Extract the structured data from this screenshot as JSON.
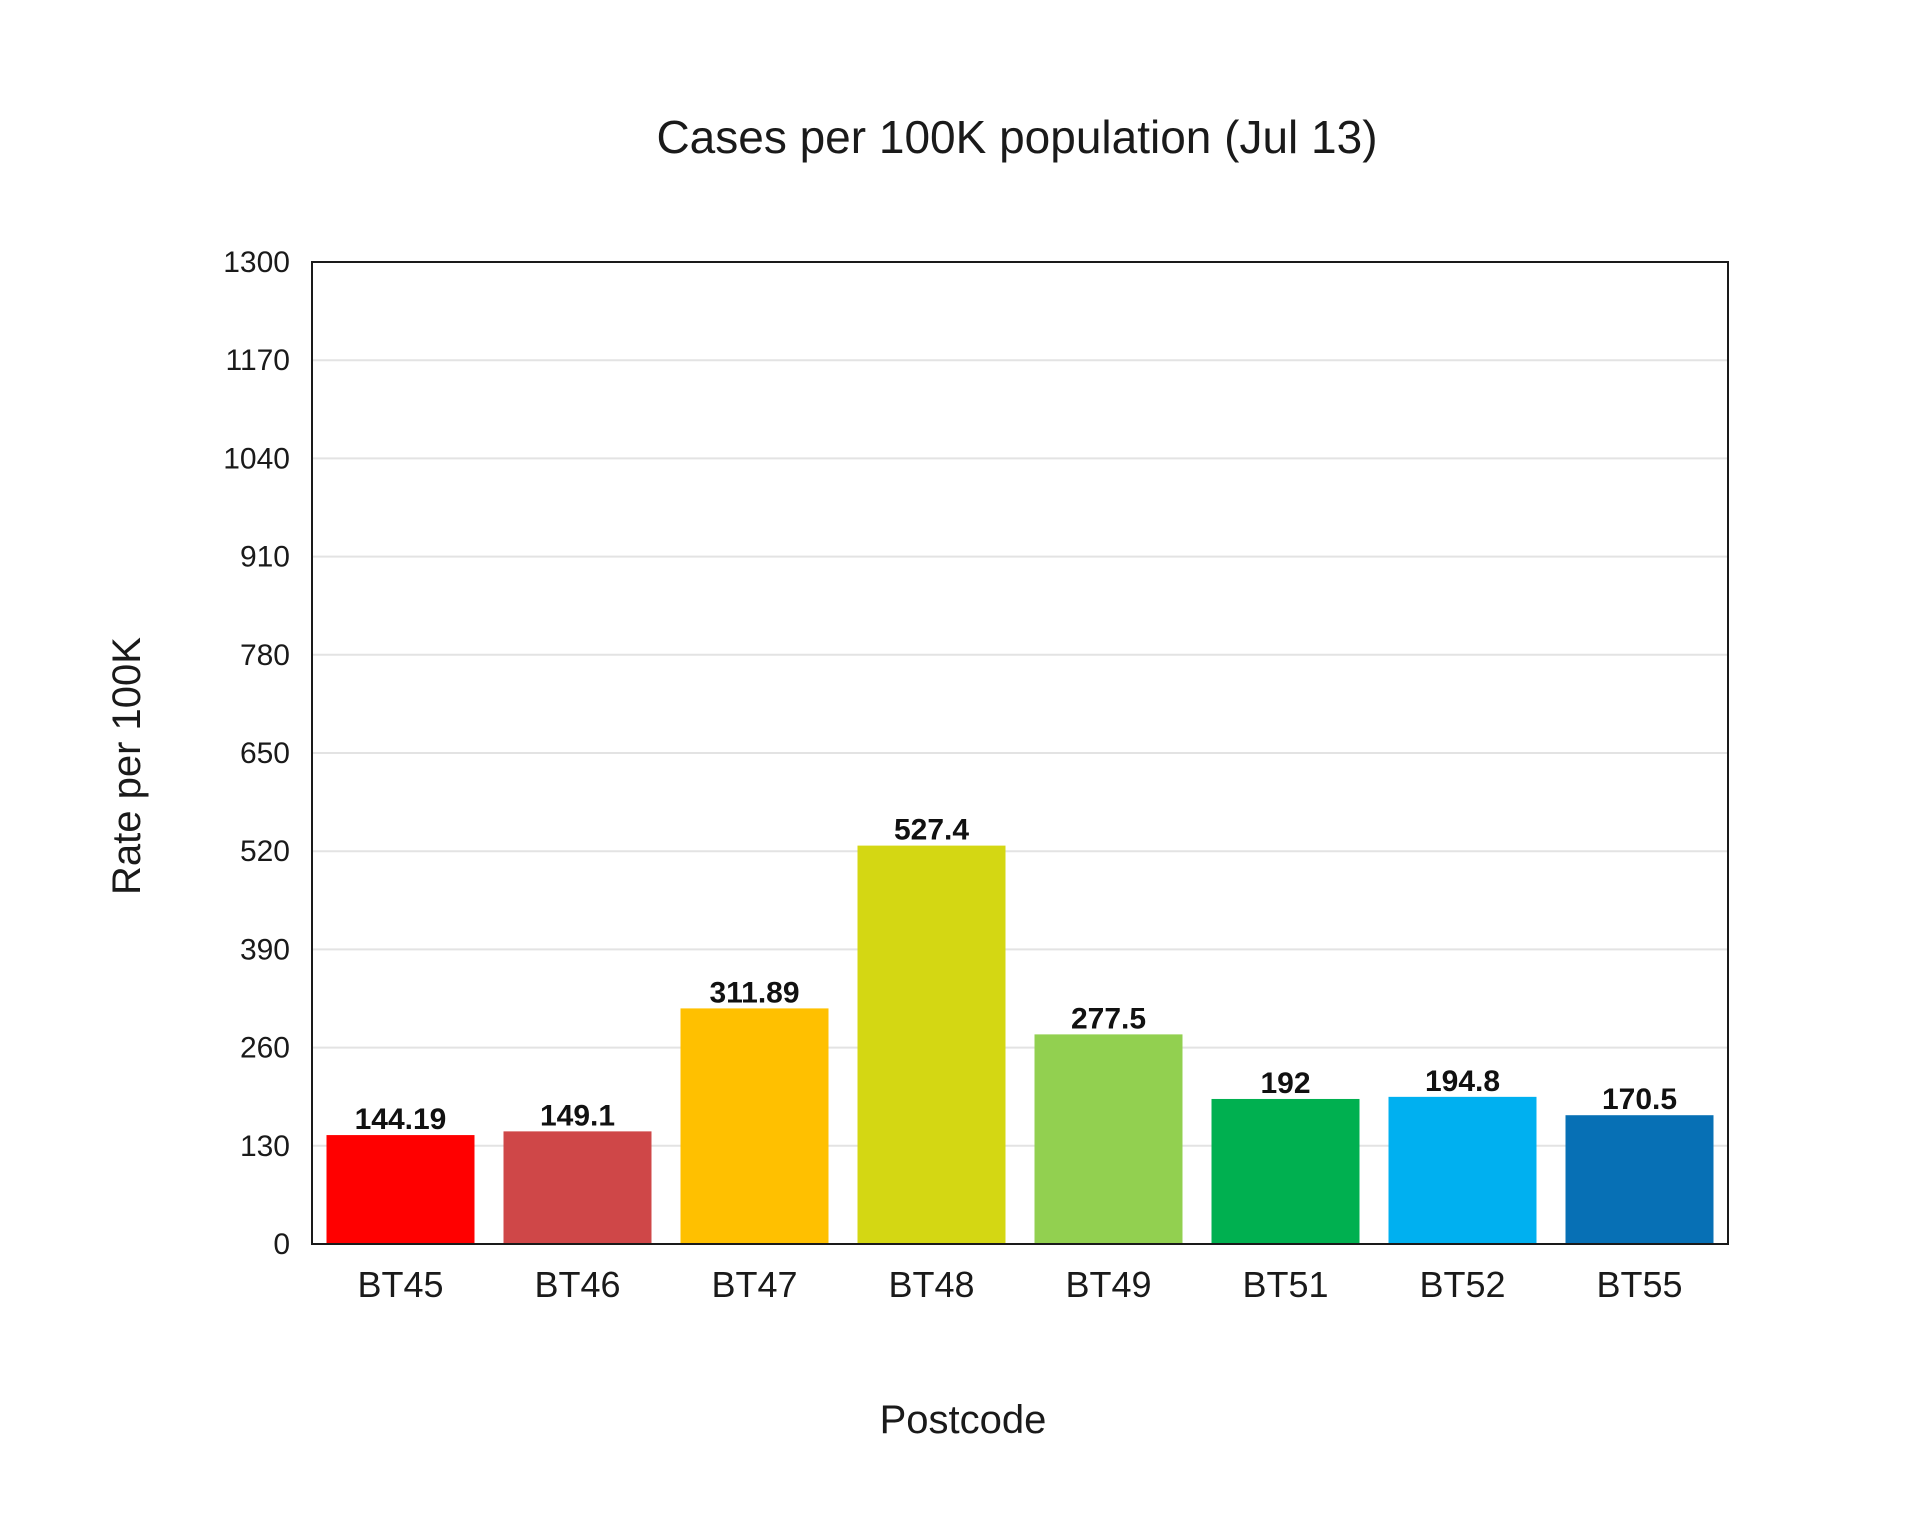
{
  "chart_data": {
    "type": "bar",
    "title": "Cases per 100K population (Jul 13)",
    "xlabel": "Postcode",
    "ylabel": "Rate per 100K",
    "categories": [
      "BT45",
      "BT46",
      "BT47",
      "BT48",
      "BT49",
      "BT51",
      "BT52",
      "BT55"
    ],
    "values": [
      144.19,
      149.1,
      311.89,
      527.4,
      277.5,
      192,
      194.8,
      170.5
    ],
    "value_labels": [
      "144.19",
      "149.1",
      "311.89",
      "527.4",
      "277.5",
      "192",
      "194.8",
      "170.5"
    ],
    "colors": [
      "#ff0000",
      "#cf4748",
      "#ffc000",
      "#d4d713",
      "#92d050",
      "#00b050",
      "#00b0f0",
      "#0770b5"
    ],
    "ylim": [
      0,
      1300
    ],
    "yticks": [
      "0",
      "130",
      "260",
      "390",
      "520",
      "650",
      "780",
      "910",
      "1040",
      "1170",
      "1300"
    ],
    "grid": true,
    "legend": "none"
  }
}
